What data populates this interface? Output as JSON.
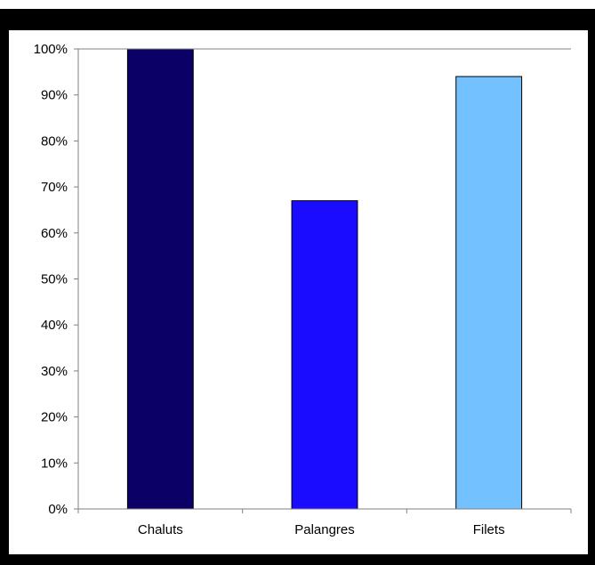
{
  "chart_data": {
    "type": "bar",
    "categories": [
      "Chaluts",
      "Palangres",
      "Filets"
    ],
    "values": [
      100,
      67,
      94
    ],
    "value_unit": "%",
    "title": "",
    "xlabel": "",
    "ylabel": "",
    "ylim": [
      0,
      100
    ],
    "y_ticks": [
      "0%",
      "10%",
      "20%",
      "30%",
      "40%",
      "50%",
      "60%",
      "70%",
      "80%",
      "90%",
      "100%"
    ],
    "grid": false,
    "legend": "none",
    "colors": [
      "#0a0066",
      "#1a0dff",
      "#73c2ff"
    ],
    "axis_color": "#808080",
    "frame_color": "#000000",
    "bar_edge_color": "#000000"
  }
}
